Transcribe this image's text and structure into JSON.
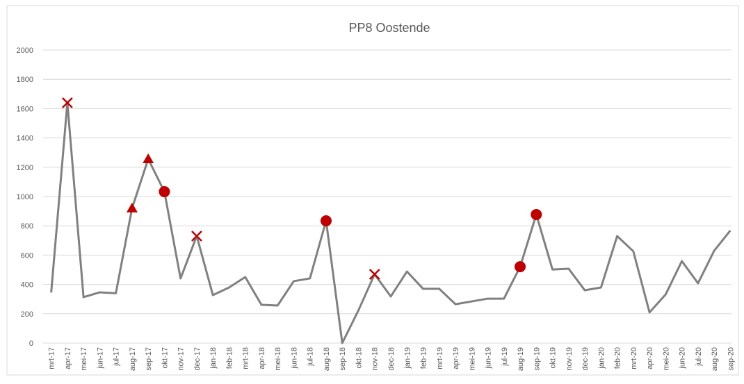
{
  "chart_data": {
    "type": "line",
    "title": "PP8 Oostende",
    "categories": [
      "mrt-17",
      "apr-17",
      "mei-17",
      "jun-17",
      "jul-17",
      "aug-17",
      "sep-17",
      "okt-17",
      "nov-17",
      "dec-17",
      "jan-18",
      "feb-18",
      "mrt-18",
      "apr-18",
      "mei-18",
      "jun-18",
      "jul-18",
      "aug-18",
      "sep-18",
      "okt-18",
      "nov-18",
      "dec-18",
      "jan-19",
      "feb-19",
      "mrt-19",
      "apr-19",
      "mei-19",
      "jun-19",
      "jul-19",
      "aug-19",
      "sep-19",
      "okt-19",
      "nov-19",
      "dec-19",
      "jan-20",
      "feb-20",
      "mrt-20",
      "apr-20",
      "mei-20",
      "jun-20",
      "jul-20",
      "aug-20",
      "sep-20"
    ],
    "values": [
      345,
      1640,
      313,
      346,
      340,
      920,
      1256,
      1033,
      441,
      730,
      327,
      379,
      450,
      261,
      256,
      422,
      441,
      834,
      0,
      223,
      469,
      318,
      488,
      370,
      370,
      265,
      284,
      303,
      303,
      521,
      877,
      502,
      507,
      360,
      379,
      730,
      626,
      209,
      332,
      559,
      408,
      630,
      768
    ],
    "marker_symbols": [
      null,
      "x",
      null,
      null,
      null,
      "triangle",
      "triangle",
      "circle",
      null,
      "x",
      null,
      null,
      null,
      null,
      null,
      null,
      null,
      "circle",
      null,
      null,
      "x",
      null,
      null,
      null,
      null,
      null,
      null,
      null,
      null,
      "circle",
      "circle",
      null,
      null,
      null,
      null,
      null,
      null,
      null,
      null,
      null,
      null,
      null,
      null
    ],
    "color": "#808080",
    "marker_color": "#c00000",
    "ylim": [
      0,
      2000
    ],
    "yticks": [
      0,
      200,
      400,
      600,
      800,
      1000,
      1200,
      1400,
      1600,
      1800,
      2000
    ],
    "grid": true
  }
}
